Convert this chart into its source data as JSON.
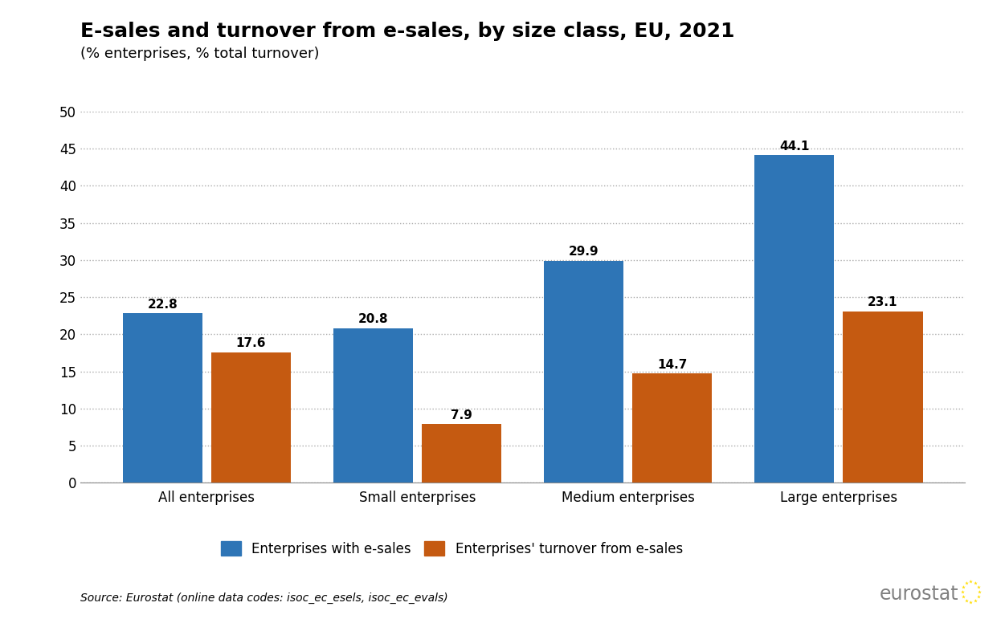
{
  "title": "E-sales and turnover from e-sales, by size class, EU, 2021",
  "subtitle": "(% enterprises, % total turnover)",
  "categories": [
    "All enterprises",
    "Small enterprises",
    "Medium enterprises",
    "Large enterprises"
  ],
  "series1_label": "Enterprises with e-sales",
  "series2_label": "Enterprises' turnover from e-sales",
  "series1_values": [
    22.8,
    20.8,
    29.9,
    44.1
  ],
  "series2_values": [
    17.6,
    7.9,
    14.7,
    23.1
  ],
  "series1_color": "#2E75B6",
  "series2_color": "#C55A11",
  "ylim": [
    0,
    50
  ],
  "yticks": [
    0,
    5,
    10,
    15,
    20,
    25,
    30,
    35,
    40,
    45,
    50
  ],
  "bar_width": 0.38,
  "bar_gap": 0.04,
  "source_text": "Source: Eurostat (online data codes: isoc_ec_esels, isoc_ec_evals)",
  "title_fontsize": 18,
  "subtitle_fontsize": 13,
  "label_fontsize": 12,
  "tick_fontsize": 12,
  "legend_fontsize": 12,
  "value_fontsize": 11,
  "background_color": "#FFFFFF",
  "grid_color": "#AAAAAA",
  "eurostat_text_color": "#808080"
}
